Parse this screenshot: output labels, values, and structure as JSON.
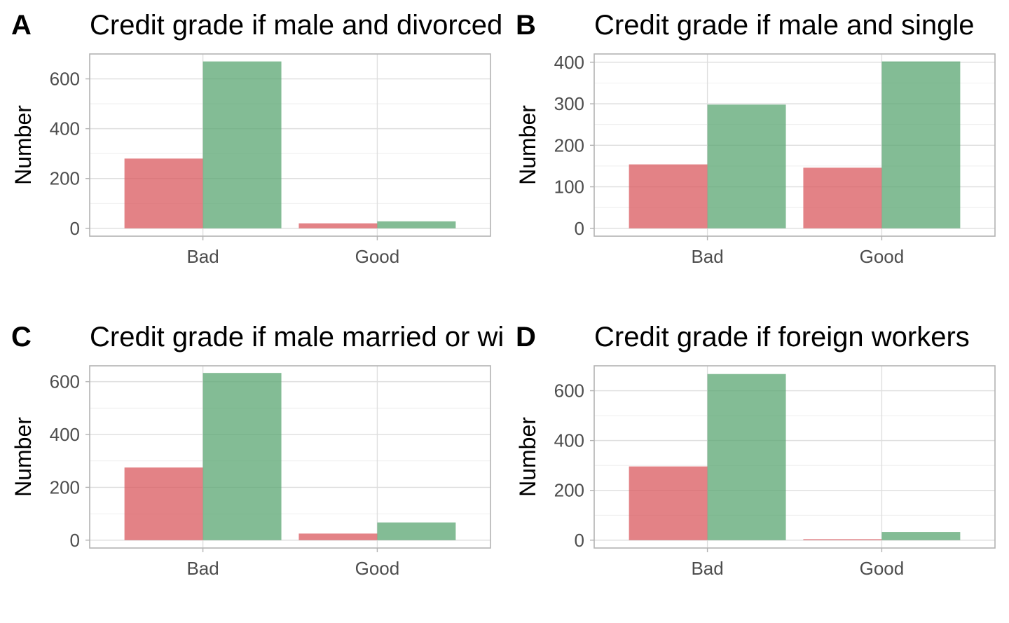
{
  "figure": {
    "colors": {
      "series_a": "#d9585e",
      "series_b": "#5aa672"
    }
  },
  "chart_data": [
    {
      "letter": "A",
      "type": "bar",
      "title": "Credit grade if male and divorced",
      "ylabel": "Number",
      "xlabel": "",
      "categories": [
        "Bad",
        "Good"
      ],
      "series": [
        {
          "values": [
            280,
            20
          ]
        },
        {
          "values": [
            670,
            28
          ]
        }
      ],
      "ylim": [
        0,
        700
      ],
      "yticks": [
        0,
        200,
        400,
        600
      ],
      "ytick_labels": [
        "0",
        "200",
        "400",
        "600"
      ],
      "grid": true
    },
    {
      "letter": "B",
      "type": "bar",
      "title": "Credit grade if male and single",
      "ylabel": "Number",
      "xlabel": "",
      "categories": [
        "Bad",
        "Good"
      ],
      "series": [
        {
          "values": [
            154,
            146
          ]
        },
        {
          "values": [
            298,
            402
          ]
        }
      ],
      "ylim": [
        0,
        420
      ],
      "yticks": [
        0,
        100,
        200,
        300,
        400
      ],
      "ytick_labels": [
        "0",
        "100",
        "200",
        "300",
        "400"
      ],
      "grid": true
    },
    {
      "letter": "C",
      "type": "bar",
      "title": "Credit grade if male married or widowed",
      "ylabel": "Number",
      "xlabel": "",
      "categories": [
        "Bad",
        "Good"
      ],
      "series": [
        {
          "values": [
            275,
            25
          ]
        },
        {
          "values": [
            633,
            67
          ]
        }
      ],
      "ylim": [
        0,
        660
      ],
      "yticks": [
        0,
        200,
        400,
        600
      ],
      "ytick_labels": [
        "0",
        "200",
        "400",
        "600"
      ],
      "grid": true
    },
    {
      "letter": "D",
      "type": "bar",
      "title": "Credit grade if foreign workers",
      "ylabel": "Number",
      "xlabel": "",
      "categories": [
        "Bad",
        "Good"
      ],
      "series": [
        {
          "values": [
            296,
            4
          ]
        },
        {
          "values": [
            667,
            33
          ]
        }
      ],
      "ylim": [
        0,
        700
      ],
      "yticks": [
        0,
        200,
        400,
        600
      ],
      "ytick_labels": [
        "0",
        "200",
        "400",
        "600"
      ],
      "grid": true
    }
  ]
}
